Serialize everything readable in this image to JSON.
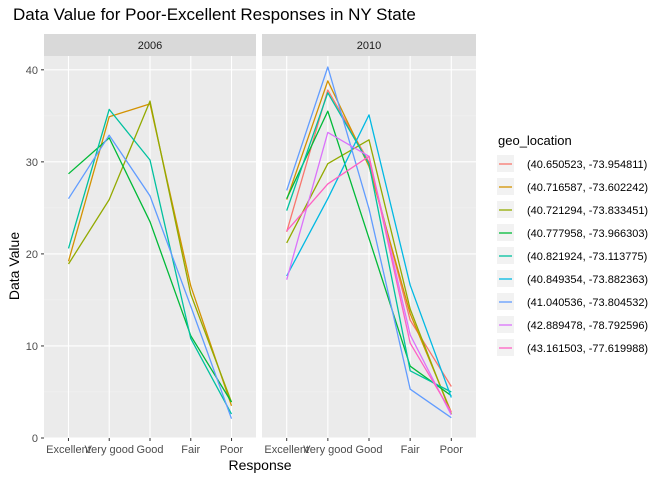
{
  "chart_data": {
    "type": "line",
    "title": "Data Value for Poor-Excellent Responses in NY State",
    "xlabel": "Response",
    "ylabel": "Data Value",
    "categories": [
      "Excellent",
      "Very good",
      "Good",
      "Fair",
      "Poor"
    ],
    "y_ticks": [
      0,
      10,
      20,
      30,
      40
    ],
    "ylim": [
      0,
      41.5
    ],
    "grid": true,
    "legend_position": "right",
    "legend_title": "geo_location",
    "colors": {
      "panel_bg": "#ebebeb",
      "strip_bg": "#d9d9d9",
      "grid_major": "#ffffff",
      "grid_minor": "#f2f2f2"
    },
    "legend": [
      {
        "label": "(40.650523, -73.954811)",
        "color": "#F8766D"
      },
      {
        "label": "(40.716587, -73.602242)",
        "color": "#D39200"
      },
      {
        "label": "(40.721294, -73.833451)",
        "color": "#93AA00"
      },
      {
        "label": "(40.777958, -73.966303)",
        "color": "#00BA38"
      },
      {
        "label": "(40.821924, -73.113775)",
        "color": "#00C19F"
      },
      {
        "label": "(40.849354, -73.882363)",
        "color": "#00B9E3"
      },
      {
        "label": "(41.040536, -73.804532)",
        "color": "#619CFF"
      },
      {
        "label": "(42.889478, -78.792596)",
        "color": "#DB72FB"
      },
      {
        "label": "(43.161503, -77.619988)",
        "color": "#FF61C3"
      }
    ],
    "panels": [
      {
        "strip": "2006",
        "series": [
          {
            "color": "#D39200",
            "values": [
              19.2,
              34.9,
              36.3,
              16.5,
              3.5
            ]
          },
          {
            "color": "#93AA00",
            "values": [
              18.9,
              25.9,
              36.6,
              15.6,
              3.9
            ]
          },
          {
            "color": "#00BA38",
            "values": [
              28.7,
              32.6,
              23.5,
              11.1,
              3.9
            ]
          },
          {
            "color": "#00C19F",
            "values": [
              20.6,
              35.7,
              30.2,
              10.8,
              2.6
            ]
          },
          {
            "color": "#619CFF",
            "values": [
              26.0,
              32.9,
              26.3,
              14.3,
              2.1
            ]
          }
        ]
      },
      {
        "strip": "2010",
        "series": [
          {
            "color": "#F8766D",
            "values": [
              22.4,
              37.8,
              30.0,
              12.8,
              5.6
            ]
          },
          {
            "color": "#D39200",
            "values": [
              25.9,
              38.8,
              29.5,
              13.5,
              2.8
            ]
          },
          {
            "color": "#93AA00",
            "values": [
              21.2,
              29.8,
              32.4,
              14.0,
              2.6
            ]
          },
          {
            "color": "#00BA38",
            "values": [
              26.0,
              35.5,
              21.7,
              7.8,
              4.6
            ]
          },
          {
            "color": "#00C19F",
            "values": [
              24.7,
              37.5,
              29.8,
              7.3,
              5.0
            ]
          },
          {
            "color": "#00B9E3",
            "values": [
              17.6,
              26.0,
              35.1,
              16.6,
              4.4
            ]
          },
          {
            "color": "#619CFF",
            "values": [
              26.9,
              40.3,
              24.9,
              5.3,
              2.2
            ]
          },
          {
            "color": "#DB72FB",
            "values": [
              17.2,
              33.2,
              30.6,
              11.2,
              2.5
            ]
          },
          {
            "color": "#FF61C3",
            "values": [
              22.5,
              27.6,
              30.6,
              10.3,
              2.8
            ]
          }
        ]
      }
    ]
  }
}
